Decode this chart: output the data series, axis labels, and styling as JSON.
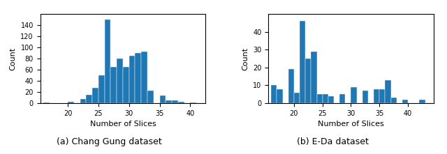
{
  "left": {
    "title": "(a) Chang Gung dataset",
    "xlabel": "Number of Slices",
    "ylabel": "Count",
    "bar_color": "#1f77b4",
    "edges": [
      16,
      17,
      18,
      19,
      20,
      21,
      22,
      23,
      24,
      25,
      26,
      27,
      28,
      29,
      30,
      31,
      32,
      33,
      34,
      35,
      36,
      37,
      38,
      39,
      40,
      41,
      42,
      43
    ],
    "counts": [
      1,
      0,
      0,
      0,
      2,
      0,
      8,
      15,
      27,
      50,
      150,
      65,
      80,
      65,
      85,
      90,
      93,
      22,
      0,
      14,
      5,
      5,
      2,
      0,
      1,
      0,
      0
    ],
    "xlim": [
      15.5,
      42.5
    ],
    "ylim": [
      0,
      160
    ],
    "yticks": [
      0,
      20,
      40,
      60,
      80,
      100,
      120,
      140
    ]
  },
  "right": {
    "title": "(b) E-Da dataset",
    "xlabel": "Number of Slices",
    "ylabel": "Count",
    "bar_color": "#1f77b4",
    "edges": [
      16,
      17,
      18,
      19,
      20,
      21,
      22,
      23,
      24,
      25,
      26,
      27,
      28,
      29,
      30,
      31,
      32,
      33,
      34,
      35,
      36,
      37,
      38,
      39,
      40,
      41,
      42,
      43,
      44
    ],
    "counts": [
      10,
      8,
      0,
      19,
      6,
      46,
      25,
      29,
      5,
      5,
      4,
      0,
      5,
      0,
      9,
      0,
      7,
      0,
      8,
      8,
      13,
      3,
      0,
      2,
      0,
      0,
      2,
      0
    ],
    "xlim": [
      15.5,
      44.5
    ],
    "ylim": [
      0,
      50
    ],
    "yticks": [
      0,
      10,
      20,
      30,
      40
    ]
  },
  "figure_bgcolor": "#ffffff",
  "font_size": 8,
  "label_size": 7,
  "caption_fontsize": 9
}
